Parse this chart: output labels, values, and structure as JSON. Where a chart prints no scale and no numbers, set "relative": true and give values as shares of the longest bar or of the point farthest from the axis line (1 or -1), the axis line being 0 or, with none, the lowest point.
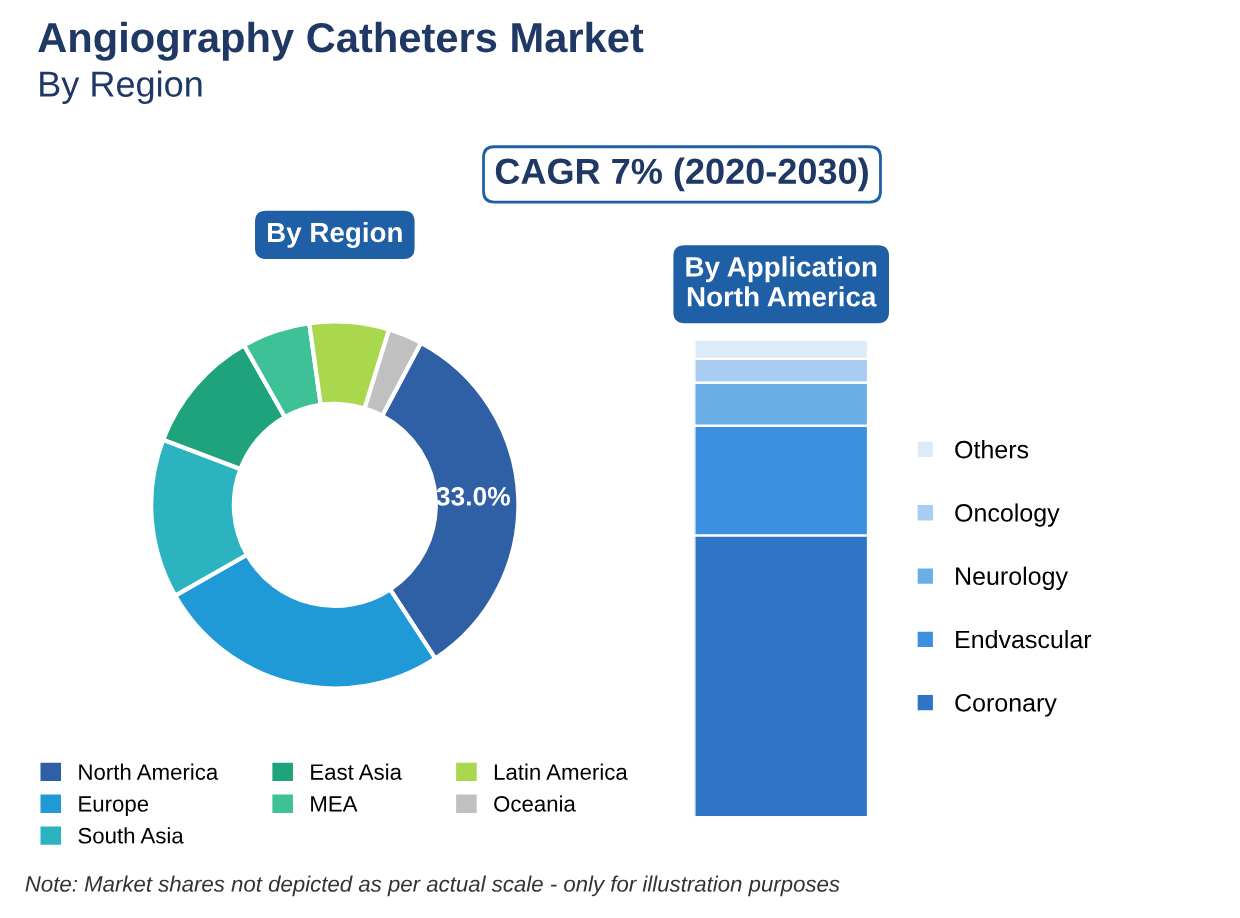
{
  "chart_data": [
    {
      "type": "donut",
      "title": "Angiography Catheters Market",
      "subtitle": "By Region",
      "xlabel": "By Region",
      "annotations": [
        "CAGR 7% (2020-2030)",
        "Note: Market shares not depicted as per actual scale - only for illustration purposes"
      ],
      "categories": [
        "North America",
        "Europe",
        "South Asia",
        "East Asia",
        "MEA",
        "Latin America",
        "Oceania"
      ],
      "values": [
        33.0,
        26,
        14,
        11,
        6,
        7,
        3
      ],
      "colors": [
        "#2f5fa5",
        "#1f9ad6",
        "#2bb3c0",
        "#1ea37c",
        "#3fc197",
        "#a9d84f",
        "#c0c0c0"
      ],
      "value_labels": [
        "33.0%",
        null,
        null,
        null,
        null,
        null,
        null
      ],
      "legend": "bottom"
    },
    {
      "type": "bar",
      "title": "By Application\nNorth America",
      "stacked": true,
      "relative": true,
      "categories": [
        null
      ],
      "legend": "right",
      "series": [
        {
          "name": "Coronary",
          "color": "#2e75c8",
          "values": [
            0.59
          ]
        },
        {
          "name": "Endvascular",
          "color": "#3d8fe0",
          "values": [
            0.23
          ]
        },
        {
          "name": "Neurology",
          "color": "#6aaee8",
          "values": [
            0.09
          ]
        },
        {
          "name": "Oncology",
          "color": "#a9cdf0",
          "values": [
            0.05
          ]
        },
        {
          "name": "Others",
          "color": "#dcebf8",
          "values": [
            0.04
          ]
        }
      ]
    }
  ]
}
